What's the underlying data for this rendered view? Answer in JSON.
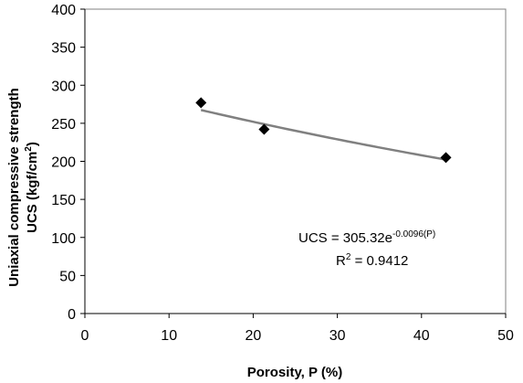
{
  "chart_data": {
    "type": "scatter",
    "xlabel": "Porosity, P (%)",
    "ylabel_line1": "Uniaxial compressive strength",
    "ylabel_line2_base": "UCS (kgf/cm",
    "ylabel_line2_sup": "2",
    "ylabel_line2_end": ")",
    "xlim": [
      0,
      50
    ],
    "ylim": [
      0,
      400
    ],
    "xticks": [
      0,
      10,
      20,
      30,
      40,
      50
    ],
    "yticks": [
      0,
      50,
      100,
      150,
      200,
      250,
      300,
      350,
      400
    ],
    "grid": false,
    "points": [
      {
        "x": 13.8,
        "y": 277
      },
      {
        "x": 21.3,
        "y": 242
      },
      {
        "x": 42.9,
        "y": 205
      }
    ],
    "trendline": {
      "model": "exponential",
      "a": 305.32,
      "b": -0.0096,
      "x_range": [
        13.8,
        42.9
      ]
    },
    "annotations": {
      "equation_base": "UCS = 305.32e",
      "equation_exp": "-0.0096(P)",
      "r2_base": "R",
      "r2_sup": "2",
      "r2_value": " = 0.9412"
    },
    "colors": {
      "marker": "#000000",
      "trendline": "#808080",
      "axis": "#000000",
      "frame": "#808080"
    }
  }
}
